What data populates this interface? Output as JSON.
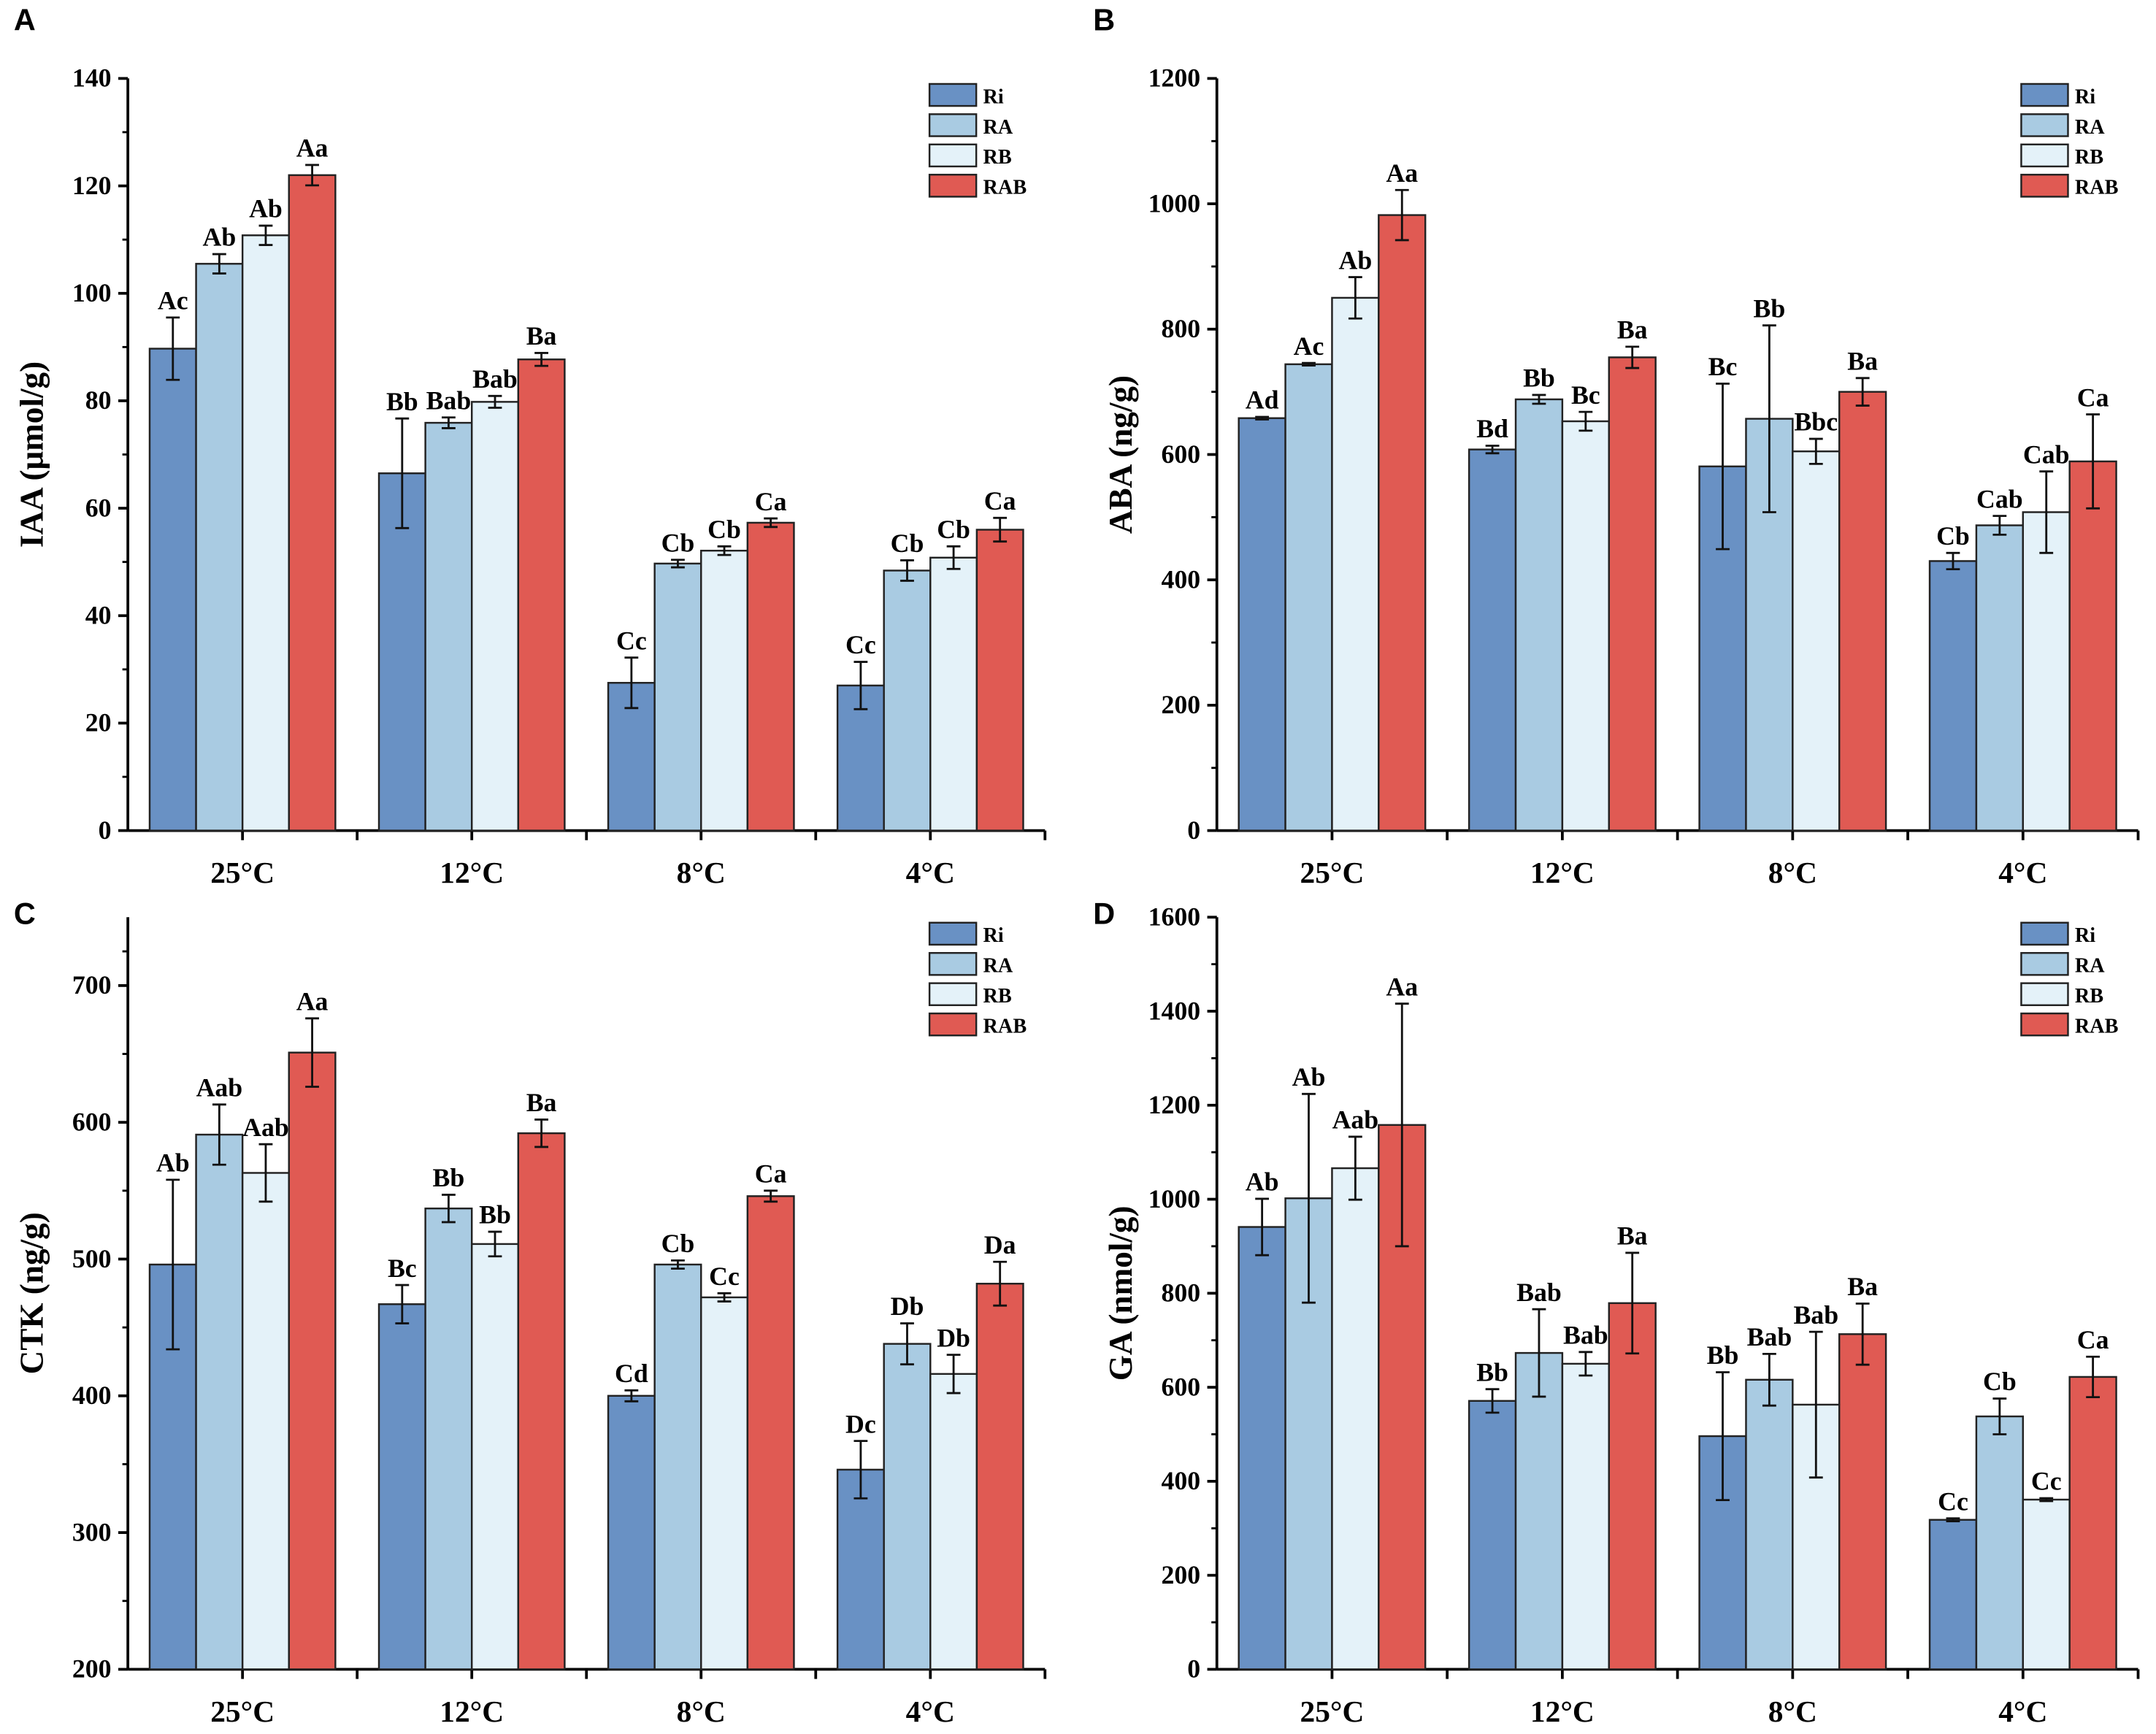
{
  "legend": [
    "Ri",
    "RA",
    "RB",
    "RAB"
  ],
  "colors": {
    "Ri": "#6991c4",
    "RA": "#a9cbe2",
    "RB": "#e4f2f9",
    "RAB": "#e05a53"
  },
  "chart_data": [
    {
      "panel": "A",
      "type": "bar",
      "ylabel": "IAA (μmol/g)",
      "ylim": [
        0,
        140
      ],
      "yticks": [
        0,
        20,
        40,
        60,
        80,
        100,
        120,
        140
      ],
      "categories": [
        "25°C",
        "12°C",
        "8°C",
        "4°C"
      ],
      "series": [
        {
          "name": "Ri",
          "values": [
            89.7,
            66.5,
            27.5,
            27.0
          ],
          "errors": [
            5.8,
            10.2,
            4.7,
            4.4
          ],
          "labels": [
            "Ac",
            "Bb",
            "Cc",
            "Cc"
          ]
        },
        {
          "name": "RA",
          "values": [
            105.5,
            75.9,
            49.7,
            48.4
          ],
          "errors": [
            1.8,
            1.0,
            0.7,
            1.9
          ],
          "labels": [
            "Ab",
            "Bab",
            "Cb",
            "Cb"
          ]
        },
        {
          "name": "RB",
          "values": [
            110.8,
            79.8,
            52.1,
            50.8
          ],
          "errors": [
            1.8,
            1.1,
            0.8,
            2.1
          ],
          "labels": [
            "Ab",
            "Bab",
            "Cb",
            "Cb"
          ]
        },
        {
          "name": "RAB",
          "values": [
            122.0,
            87.7,
            57.3,
            56.0
          ],
          "errors": [
            1.9,
            1.2,
            0.8,
            2.2
          ],
          "labels": [
            "Aa",
            "Ba",
            "Ca",
            "Ca"
          ]
        }
      ]
    },
    {
      "panel": "B",
      "type": "bar",
      "ylabel": "ABA (ng/g)",
      "ylim": [
        0,
        1200
      ],
      "yticks": [
        0,
        200,
        400,
        600,
        800,
        1000,
        1200
      ],
      "categories": [
        "25°C",
        "12°C",
        "8°C",
        "4°C"
      ],
      "series": [
        {
          "name": "Ri",
          "values": [
            658,
            608,
            581,
            430
          ],
          "errors": [
            2,
            6,
            132,
            13
          ],
          "labels": [
            "Ad",
            "Bd",
            "Bc",
            "Cb"
          ]
        },
        {
          "name": "RA",
          "values": [
            744,
            688,
            657,
            487
          ],
          "errors": [
            2,
            7,
            149,
            15
          ],
          "labels": [
            "Ac",
            "Bb",
            "Bb",
            "Cab"
          ]
        },
        {
          "name": "RB",
          "values": [
            850,
            653,
            605,
            508
          ],
          "errors": [
            33,
            15,
            20,
            65
          ],
          "labels": [
            "Ab",
            "Bc",
            "Bbc",
            "Cab"
          ]
        },
        {
          "name": "RAB",
          "values": [
            982,
            755,
            700,
            589
          ],
          "errors": [
            40,
            17,
            22,
            75
          ],
          "labels": [
            "Aa",
            "Ba",
            "Ba",
            "Ca"
          ]
        }
      ]
    },
    {
      "panel": "C",
      "type": "bar",
      "ylabel": "CTK (ng/g)",
      "ylim": [
        200,
        750
      ],
      "yticks": [
        200,
        300,
        400,
        500,
        600,
        700
      ],
      "categories": [
        "25°C",
        "12°C",
        "8°C",
        "4°C"
      ],
      "series": [
        {
          "name": "Ri",
          "values": [
            496,
            467,
            400,
            346
          ],
          "errors": [
            62,
            14,
            4,
            21
          ],
          "labels": [
            "Ab",
            "Bc",
            "Cd",
            "Dc"
          ]
        },
        {
          "name": "RA",
          "values": [
            591,
            537,
            496,
            438
          ],
          "errors": [
            22,
            10,
            3,
            15
          ],
          "labels": [
            "Aab",
            "Bb",
            "Cb",
            "Db"
          ]
        },
        {
          "name": "RB",
          "values": [
            563,
            511,
            472,
            416
          ],
          "errors": [
            21,
            9,
            3,
            14
          ],
          "labels": [
            "Aab",
            "Bb",
            "Cc",
            "Db"
          ]
        },
        {
          "name": "RAB",
          "values": [
            651,
            592,
            546,
            482
          ],
          "errors": [
            25,
            10,
            4,
            16
          ],
          "labels": [
            "Aa",
            "Ba",
            "Ca",
            "Da"
          ]
        }
      ]
    },
    {
      "panel": "D",
      "type": "bar",
      "ylabel": "GA (nmol/g)",
      "ylim": [
        0,
        1600
      ],
      "yticks": [
        0,
        200,
        400,
        600,
        800,
        1000,
        1200,
        1400,
        1600
      ],
      "categories": [
        "25°C",
        "12°C",
        "8°C",
        "4°C"
      ],
      "series": [
        {
          "name": "Ri",
          "values": [
            941,
            571,
            496,
            318
          ],
          "errors": [
            60,
            25,
            136,
            3
          ],
          "labels": [
            "Ab",
            "Bb",
            "Bb",
            "Cc"
          ]
        },
        {
          "name": "RA",
          "values": [
            1002,
            673,
            616,
            538
          ],
          "errors": [
            222,
            93,
            55,
            38
          ],
          "labels": [
            "Ab",
            "Bab",
            "Bab",
            "Cb"
          ]
        },
        {
          "name": "RB",
          "values": [
            1066,
            650,
            563,
            361
          ],
          "errors": [
            67,
            25,
            155,
            3
          ],
          "labels": [
            "Aab",
            "Bab",
            "Bab",
            "Cc"
          ]
        },
        {
          "name": "RAB",
          "values": [
            1158,
            779,
            713,
            622
          ],
          "errors": [
            258,
            107,
            65,
            43
          ],
          "labels": [
            "Aa",
            "Ba",
            "Ba",
            "Ca"
          ]
        }
      ]
    }
  ]
}
